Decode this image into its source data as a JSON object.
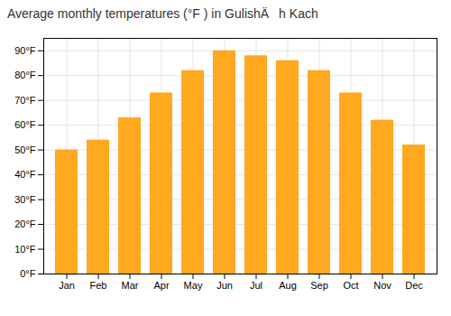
{
  "chart_data": {
    "type": "bar",
    "title": "Average monthly temperatures (°F ) in GulishÄh Kach",
    "categories": [
      "Jan",
      "Feb",
      "Mar",
      "Apr",
      "May",
      "Jun",
      "Jul",
      "Aug",
      "Sep",
      "Oct",
      "Nov",
      "Dec"
    ],
    "values": [
      50,
      54,
      63,
      73,
      82,
      90,
      88,
      86,
      82,
      73,
      62,
      52
    ],
    "color": "#FFA820",
    "ylim": [
      0,
      95
    ],
    "yticks": [
      {
        "value": 0,
        "label": "0°F"
      },
      {
        "value": 10,
        "label": "10°F"
      },
      {
        "value": 20,
        "label": "20°F"
      },
      {
        "value": 30,
        "label": "30°F"
      },
      {
        "value": 40,
        "label": "40°F"
      },
      {
        "value": 50,
        "label": "50°F"
      },
      {
        "value": 60,
        "label": "60°F"
      },
      {
        "value": 70,
        "label": "70°F"
      },
      {
        "value": 80,
        "label": "80°F"
      },
      {
        "value": 90,
        "label": "90°F"
      }
    ],
    "grid": true
  }
}
